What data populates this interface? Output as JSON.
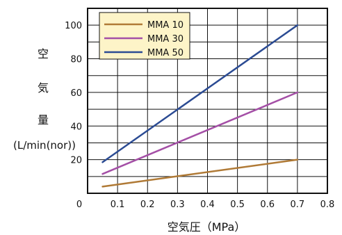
{
  "chart_data": {
    "type": "line",
    "ylabel": [
      "空",
      "気",
      "量"
    ],
    "yunit": "(L/min(nor))",
    "xlabel": "空気圧（MPa）",
    "xlim": [
      0,
      0.8
    ],
    "ylim": [
      0,
      110
    ],
    "x_ticks": [
      "0",
      "0.1",
      "0.2",
      "0.3",
      "0.4",
      "0.5",
      "0.6",
      "0.7",
      "0.8"
    ],
    "y_ticks": [
      "20",
      "40",
      "60",
      "80",
      "100"
    ],
    "legend_position": "top-left",
    "grid": true,
    "series": [
      {
        "name": "MMA 10",
        "color": "#b07a36",
        "x": [
          0.05,
          0.7
        ],
        "y": [
          4,
          20
        ]
      },
      {
        "name": "MMA 30",
        "color": "#a44fa6",
        "x": [
          0.05,
          0.7
        ],
        "y": [
          11.5,
          60
        ]
      },
      {
        "name": "MMA 50",
        "color": "#2b4b93",
        "x": [
          0.05,
          0.7
        ],
        "y": [
          18.5,
          100
        ]
      }
    ]
  }
}
